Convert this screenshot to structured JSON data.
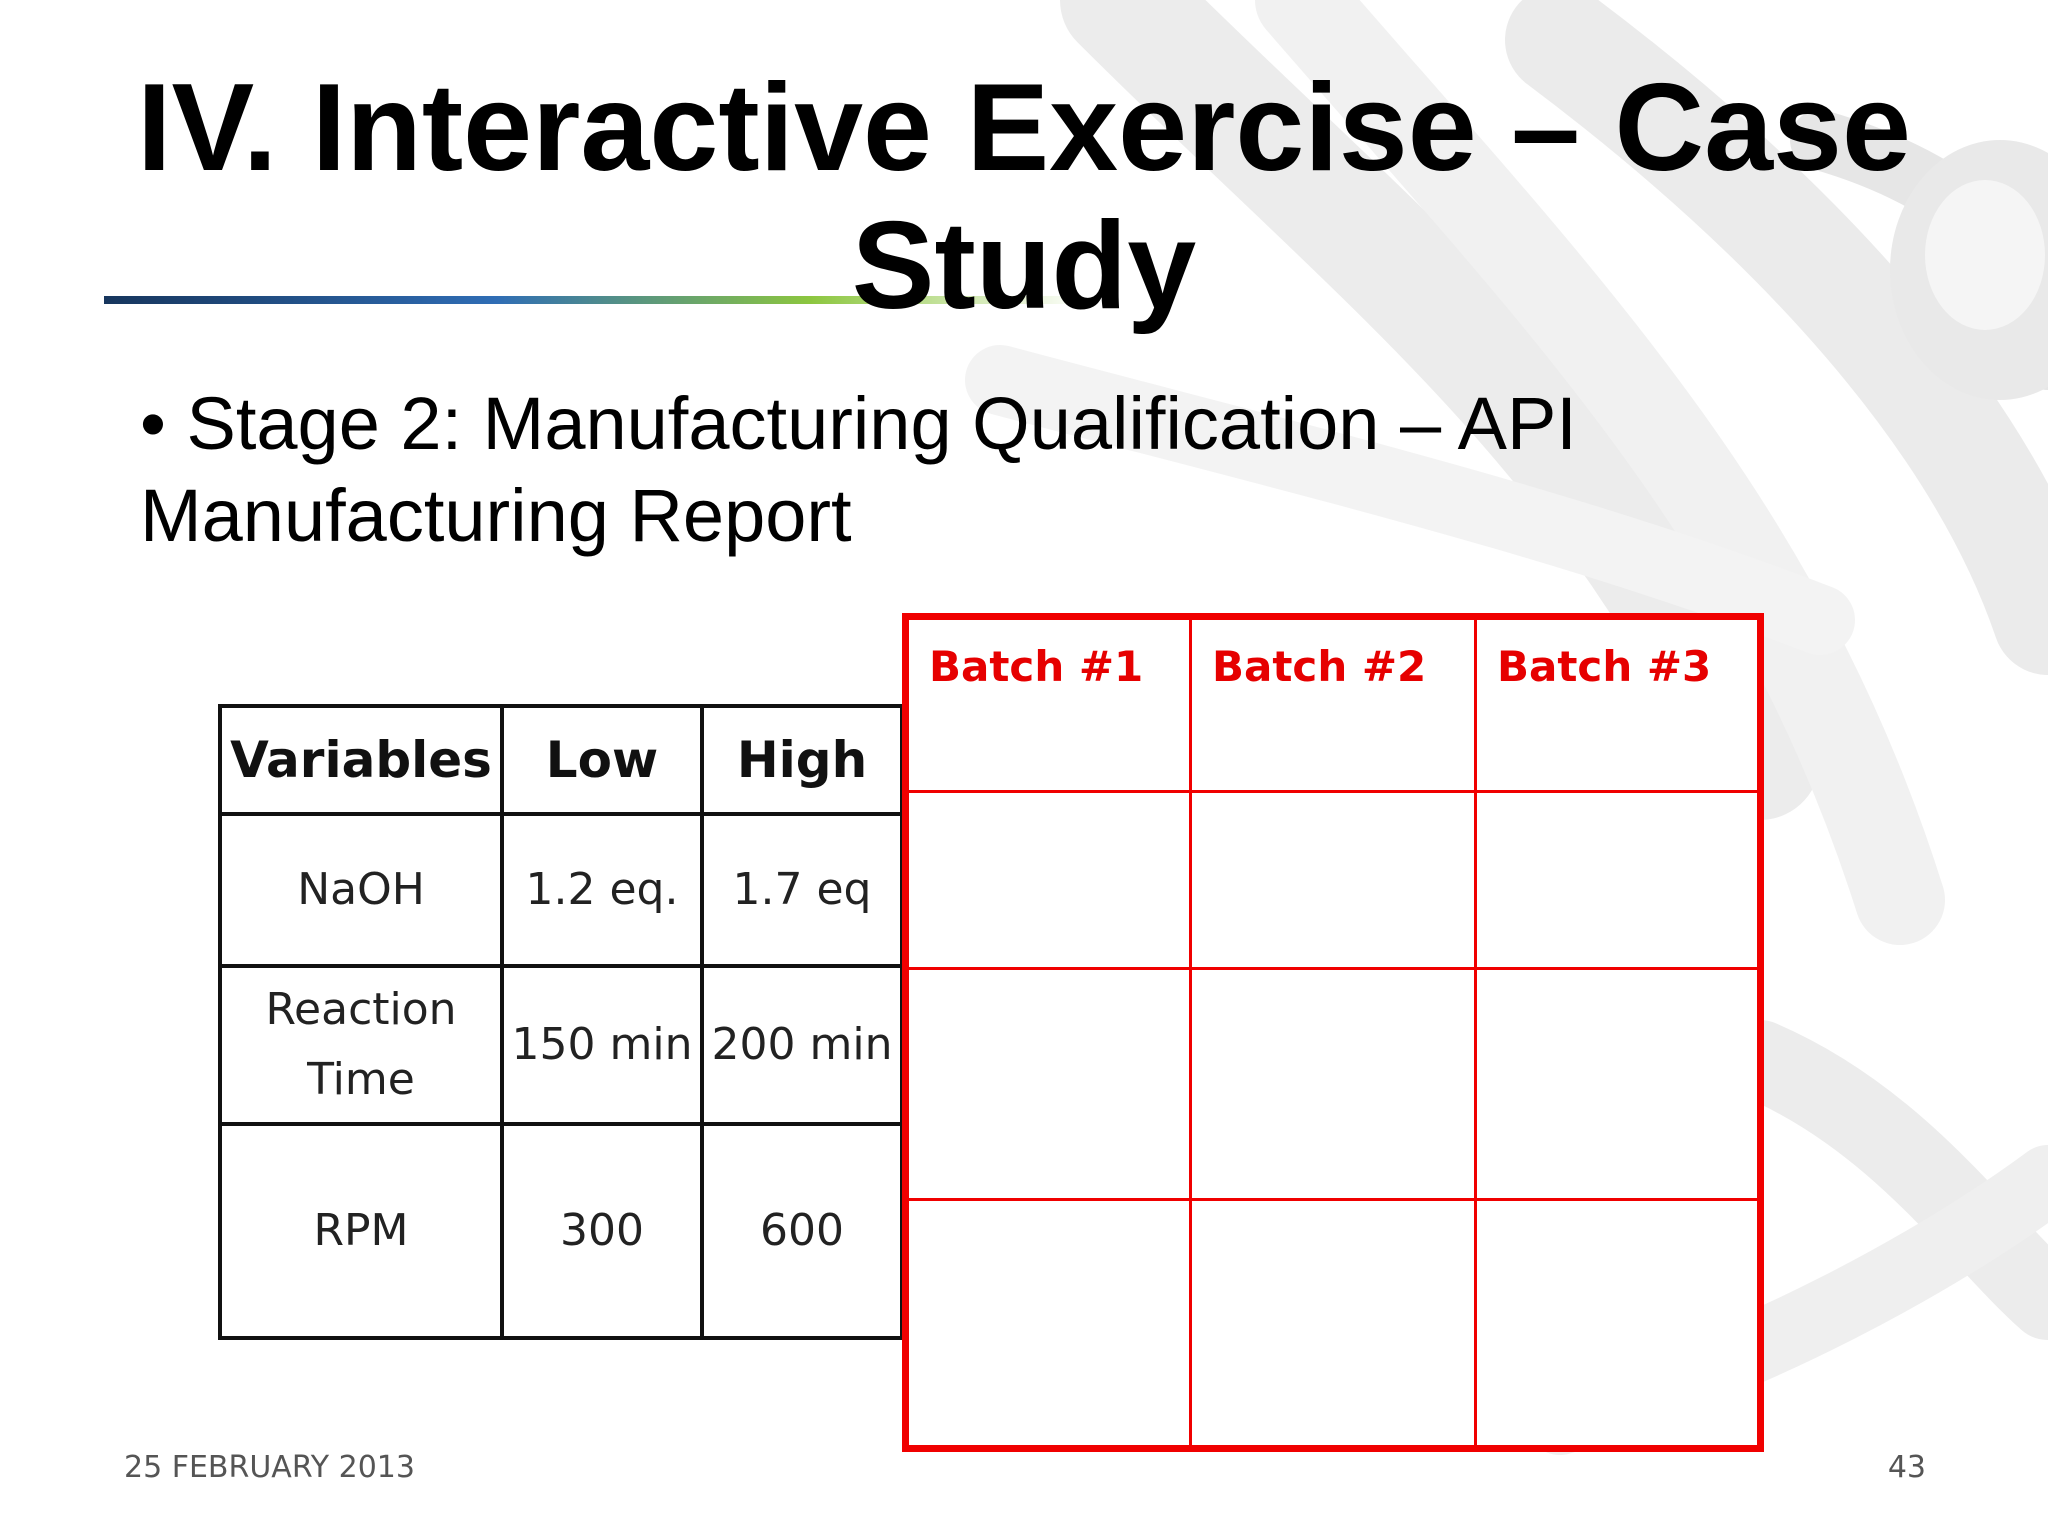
{
  "slide": {
    "title_line_1": "IV. Interactive Exercise – Case",
    "title_line_2": "Study",
    "bullet_line_1": "• Stage 2: Manufacturing Qualification – API",
    "bullet_line_2": "Manufacturing Report"
  },
  "variables_table": {
    "headers": [
      "Variables",
      "Low",
      "High"
    ],
    "rows": [
      {
        "variable": "NaOH",
        "low": "1.2 eq.",
        "high": "1.7 eq"
      },
      {
        "variable_line_1": "Reaction",
        "variable_line_2": "Time",
        "low": "150 min",
        "high": "200 min"
      },
      {
        "variable": "RPM",
        "low": "300",
        "high": "600"
      }
    ]
  },
  "batch_table": {
    "headers": [
      "Batch #1",
      "Batch #2",
      "Batch #3"
    ],
    "rows": [
      [
        "",
        "",
        ""
      ],
      [
        "",
        "",
        ""
      ],
      [
        "",
        "",
        ""
      ]
    ],
    "color": "#e60000"
  },
  "footer": {
    "date": "25 FEBRUARY 2013",
    "page_number": "43"
  }
}
